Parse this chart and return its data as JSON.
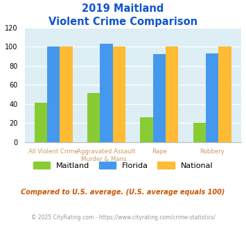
{
  "title_line1": "2019 Maitland",
  "title_line2": "Violent Crime Comparison",
  "cat_labels_line1": [
    "",
    "Aggravated Assault",
    "Assault",
    "",
    ""
  ],
  "cat_labels_line2": [
    "All Violent Crime",
    "Murder & Mans...",
    "Murder & Mans...",
    "Rape",
    "Robbery"
  ],
  "cat_top_labels": [
    "",
    "Aggravated Assault",
    "Assault",
    "Rape",
    "Robbery"
  ],
  "cat_bot_labels": [
    "All Violent Crime",
    "Murder & Mans...",
    "Murder & Mans...",
    "",
    ""
  ],
  "maitland": [
    41,
    0,
    51,
    26,
    20
  ],
  "florida": [
    100,
    0,
    103,
    92,
    93
  ],
  "national": [
    100,
    0,
    100,
    100,
    100
  ],
  "color_maitland": "#88cc33",
  "color_florida": "#4499ee",
  "color_national": "#ffbb33",
  "ylim": [
    0,
    120
  ],
  "yticks": [
    0,
    20,
    40,
    60,
    80,
    100,
    120
  ],
  "bg_color": "#ddeef5",
  "title_color": "#1155cc",
  "xtick_color": "#cc9966",
  "footer_note": "Compared to U.S. average. (U.S. average equals 100)",
  "footer_copy": "© 2025 CityRating.com - https://www.cityrating.com/crime-statistics/",
  "footer_note_color": "#cc5500",
  "footer_copy_color": "#999999"
}
